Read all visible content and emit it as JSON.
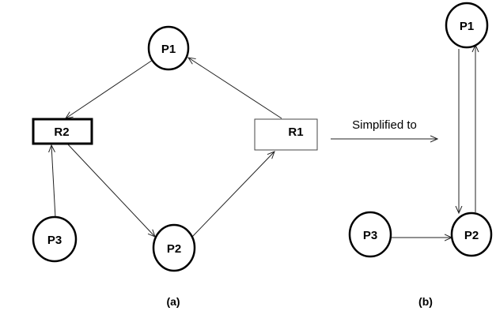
{
  "diagram_a": {
    "caption": "(a)",
    "nodes": {
      "p1": "P1",
      "p2": "P2",
      "p3": "P3",
      "r1": "R1",
      "r2": "R2"
    }
  },
  "transition": {
    "label": "Simplified to"
  },
  "diagram_b": {
    "caption": "(b)",
    "nodes": {
      "p1": "P1",
      "p2": "P2",
      "p3": "P3"
    }
  }
}
